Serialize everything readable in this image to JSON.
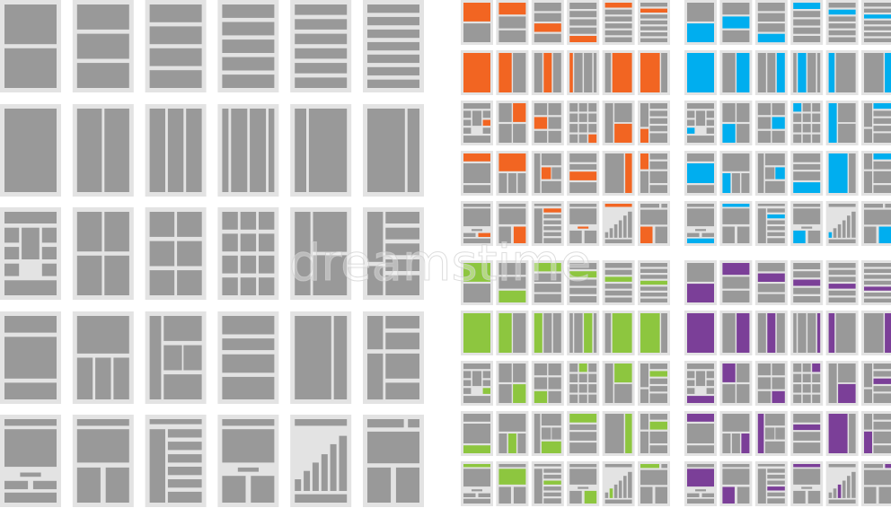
{
  "watermark": "dreamstime"
}
